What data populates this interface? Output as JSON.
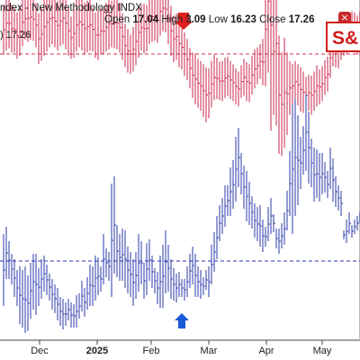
{
  "header": {
    "title": "ndex - New Methodology  INDX",
    "open_label": "Open",
    "open_value": "17.04",
    "high_label": "High",
    "high_value": "3.09",
    "low_label": "Low",
    "low_value": "16.23",
    "close_label": "Close",
    "close_value": "17.26",
    "series_label": ") 17.26",
    "close_icon": "close-icon"
  },
  "logo": {
    "text": "S&"
  },
  "markers": {
    "top": {
      "icon": "arrow-down-icon",
      "color": "#e02020"
    },
    "bottom": {
      "icon": "arrow-up-icon",
      "color": "#1a5ad8"
    }
  },
  "chart_data": {
    "type": "bar",
    "style": "ohlc",
    "x_ticks": [
      {
        "label": "Dec",
        "bold": false
      },
      {
        "label": "2025",
        "bold": true
      },
      {
        "label": "Feb",
        "bold": false
      },
      {
        "label": "Mar",
        "bold": false
      },
      {
        "label": "Apr",
        "bold": false
      },
      {
        "label": "May",
        "bold": false
      }
    ],
    "reference_lines": [
      {
        "series": "upper",
        "style": "dashed",
        "color": "#d0304a",
        "value": 17.26
      },
      {
        "series": "lower",
        "style": "dashed",
        "color": "#2a3aa8",
        "value": 0.15
      }
    ],
    "series": [
      {
        "color": "#c8264a",
        "bars": [
          [
            21.9,
            17.2
          ],
          [
            22.8,
            17.6
          ],
          [
            22.5,
            17.8
          ],
          [
            21.9,
            17.4
          ],
          [
            21.7,
            17.4
          ],
          [
            21.2,
            16.8
          ],
          [
            21.8,
            17.1
          ],
          [
            22.5,
            18.0
          ],
          [
            22.6,
            18.6
          ],
          [
            22.9,
            18.4
          ],
          [
            22.9,
            18.6
          ],
          [
            22.6,
            18.5
          ],
          [
            22.1,
            17.9
          ],
          [
            21.1,
            16.3
          ],
          [
            21.7,
            16.6
          ],
          [
            22.6,
            17.1
          ],
          [
            23.0,
            17.5
          ],
          [
            23.3,
            17.9
          ],
          [
            23.2,
            18.2
          ],
          [
            22.8,
            17.9
          ],
          [
            22.3,
            17.6
          ],
          [
            22.8,
            18.0
          ],
          [
            23.1,
            18.2
          ],
          [
            22.7,
            17.7
          ],
          [
            21.8,
            17.1
          ],
          [
            20.8,
            16.8
          ],
          [
            21.5,
            16.9
          ],
          [
            22.5,
            17.5
          ],
          [
            22.7,
            17.9
          ],
          [
            22.5,
            17.6
          ],
          [
            22.1,
            17.2
          ],
          [
            22.3,
            17.4
          ],
          [
            22.4,
            17.6
          ],
          [
            21.7,
            17.5
          ],
          [
            21.2,
            16.9
          ],
          [
            21.4,
            16.7
          ],
          [
            21.7,
            17.2
          ],
          [
            21.5,
            17.3
          ],
          [
            22.1,
            17.5
          ],
          [
            22.5,
            17.7
          ],
          [
            22.3,
            17.9
          ],
          [
            22.6,
            17.8
          ],
          [
            22.7,
            17.7
          ],
          [
            22.1,
            17.4
          ],
          [
            21.1,
            16.7
          ],
          [
            20.1,
            16.0
          ],
          [
            19.6,
            15.5
          ],
          [
            19.1,
            15.4
          ],
          [
            19.8,
            15.6
          ],
          [
            20.7,
            16.2
          ],
          [
            21.7,
            16.9
          ],
          [
            21.9,
            17.6
          ],
          [
            22.0,
            17.3
          ],
          [
            21.9,
            17.5
          ],
          [
            22.8,
            18.2
          ],
          [
            23.2,
            18.4
          ],
          [
            22.9,
            18.5
          ],
          [
            22.6,
            18.3
          ],
          [
            23.6,
            19.0
          ],
          [
            23.8,
            19.4
          ],
          [
            23.7,
            19.3
          ],
          [
            23.0,
            18.2
          ],
          [
            21.8,
            17.1
          ],
          [
            20.9,
            16.5
          ],
          [
            21.1,
            16.7
          ],
          [
            20.5,
            16.0
          ],
          [
            20.0,
            15.8
          ],
          [
            19.3,
            15.2
          ],
          [
            18.7,
            14.8
          ],
          [
            17.8,
            14.0
          ],
          [
            17.4,
            13.1
          ],
          [
            17.3,
            12.5
          ],
          [
            16.8,
            12.2
          ],
          [
            16.6,
            11.9
          ],
          [
            16.3,
            11.3
          ],
          [
            16.0,
            10.8
          ],
          [
            15.9,
            11.2
          ],
          [
            16.6,
            12.2
          ],
          [
            17.2,
            12.9
          ],
          [
            16.9,
            13.0
          ],
          [
            16.5,
            12.9
          ],
          [
            16.6,
            12.8
          ],
          [
            16.9,
            13.1
          ],
          [
            17.0,
            13.3
          ],
          [
            16.6,
            13.0
          ],
          [
            16.3,
            12.8
          ],
          [
            15.9,
            12.5
          ],
          [
            15.6,
            12.3
          ],
          [
            16.2,
            13.1
          ],
          [
            16.8,
            13.3
          ],
          [
            16.5,
            12.8
          ],
          [
            16.3,
            12.7
          ],
          [
            17.1,
            13.4
          ],
          [
            17.7,
            14.0
          ],
          [
            17.9,
            14.4
          ],
          [
            18.2,
            14.9
          ],
          [
            18.7,
            14.3
          ],
          [
            25.0,
            14.2
          ],
          [
            29.0,
            15.5
          ],
          [
            30.0,
            10.0
          ],
          [
            23.5,
            11.5
          ],
          [
            26.0,
            10.5
          ],
          [
            19.0,
            7.8
          ],
          [
            17.4,
            7.6
          ],
          [
            18.8,
            8.4
          ],
          [
            17.4,
            9.6
          ],
          [
            16.6,
            11.5
          ],
          [
            16.3,
            12.2
          ],
          [
            16.6,
            12.7
          ],
          [
            16.3,
            12.4
          ],
          [
            16.0,
            11.8
          ],
          [
            15.6,
            11.7
          ],
          [
            15.1,
            11.6
          ],
          [
            15.3,
            11.9
          ],
          [
            15.2,
            11.5
          ],
          [
            15.6,
            11.9
          ],
          [
            16.2,
            12.3
          ],
          [
            15.8,
            12.5
          ],
          [
            16.1,
            12.8
          ],
          [
            16.7,
            13.4
          ],
          [
            17.0,
            13.7
          ],
          [
            18.8,
            15.0
          ],
          [
            19.0,
            16.1
          ],
          [
            18.9,
            16.0
          ],
          [
            19.2,
            15.9
          ],
          [
            19.9,
            16.7
          ],
          [
            20.4,
            17.1
          ],
          [
            20.8,
            17.3
          ],
          [
            20.9,
            17.6
          ],
          [
            21.3,
            18.0
          ],
          [
            21.2,
            17.4
          ],
          [
            20.9,
            17.2
          ],
          [
            21.3,
            17.6
          ]
        ]
      },
      {
        "color": "#2a3aa8",
        "bars": [
          [
            0.3,
            -0.1
          ],
          [
            0.34,
            0.05
          ],
          [
            0.26,
            0.05
          ],
          [
            0.19,
            0.02
          ],
          [
            0.16,
            -0.05
          ],
          [
            0.1,
            -0.1
          ],
          [
            0.12,
            -0.2
          ],
          [
            0.1,
            -0.22
          ],
          [
            0.12,
            -0.25
          ],
          [
            0.07,
            -0.24
          ],
          [
            0.14,
            -0.17
          ],
          [
            0.19,
            -0.12
          ],
          [
            0.19,
            -0.15
          ],
          [
            0.11,
            -0.1
          ],
          [
            0.16,
            -0.06
          ],
          [
            0.18,
            -0.02
          ],
          [
            0.13,
            -0.04
          ],
          [
            0.08,
            -0.07
          ],
          [
            0.05,
            -0.12
          ],
          [
            0.02,
            -0.14
          ],
          [
            0.0,
            -0.18
          ],
          [
            -0.05,
            -0.21
          ],
          [
            -0.06,
            -0.23
          ],
          [
            -0.08,
            -0.21
          ],
          [
            -0.06,
            -0.18
          ],
          [
            -0.08,
            -0.22
          ],
          [
            -0.09,
            -0.22
          ],
          [
            -0.04,
            -0.22
          ],
          [
            -0.03,
            -0.17
          ],
          [
            0.04,
            -0.13
          ],
          [
            0.0,
            -0.16
          ],
          [
            0.06,
            -0.12
          ],
          [
            0.13,
            -0.1
          ],
          [
            0.12,
            -0.1
          ],
          [
            0.18,
            -0.07
          ],
          [
            0.17,
            -0.04
          ],
          [
            0.12,
            -0.02
          ],
          [
            0.3,
            0.02
          ],
          [
            0.22,
            0.06
          ],
          [
            0.2,
            0.04
          ],
          [
            0.58,
            -0.05
          ],
          [
            0.62,
            0.08
          ],
          [
            0.35,
            0.06
          ],
          [
            0.3,
            0.04
          ],
          [
            0.33,
            0.04
          ],
          [
            0.32,
            0.0
          ],
          [
            0.23,
            -0.03
          ],
          [
            0.2,
            -0.05
          ],
          [
            0.16,
            -0.1
          ],
          [
            0.2,
            -0.06
          ],
          [
            0.3,
            -0.02
          ],
          [
            0.26,
            0.02
          ],
          [
            0.14,
            -0.06
          ],
          [
            0.25,
            -0.04
          ],
          [
            0.27,
            0.04
          ],
          [
            0.18,
            0.0
          ],
          [
            0.11,
            -0.03
          ],
          [
            0.09,
            -0.09
          ],
          [
            0.18,
            -0.11
          ],
          [
            0.24,
            -0.11
          ],
          [
            0.32,
            -0.03
          ],
          [
            0.24,
            -0.02
          ],
          [
            0.16,
            -0.06
          ],
          [
            0.11,
            -0.07
          ],
          [
            0.08,
            -0.08
          ],
          [
            0.09,
            -0.05
          ],
          [
            0.05,
            -0.05
          ],
          [
            0.05,
            -0.07
          ],
          [
            0.12,
            -0.05
          ],
          [
            0.19,
            0.0
          ],
          [
            0.23,
            0.02
          ],
          [
            0.19,
            -0.05
          ],
          [
            0.12,
            -0.05
          ],
          [
            0.1,
            -0.06
          ],
          [
            0.06,
            -0.04
          ],
          [
            0.1,
            -0.01
          ],
          [
            0.12,
            -0.05
          ],
          [
            0.24,
            0.02
          ],
          [
            0.31,
            0.09
          ],
          [
            0.4,
            0.16
          ],
          [
            0.46,
            0.26
          ],
          [
            0.5,
            0.3
          ],
          [
            0.57,
            0.34
          ],
          [
            0.57,
            0.4
          ],
          [
            0.67,
            0.4
          ],
          [
            0.71,
            0.44
          ],
          [
            0.84,
            0.48
          ],
          [
            0.89,
            0.56
          ],
          [
            0.75,
            0.52
          ],
          [
            0.68,
            0.44
          ],
          [
            0.65,
            0.37
          ],
          [
            0.59,
            0.35
          ],
          [
            0.51,
            0.33
          ],
          [
            0.47,
            0.28
          ],
          [
            0.45,
            0.26
          ],
          [
            0.46,
            0.23
          ],
          [
            0.38,
            0.2
          ],
          [
            0.34,
            0.23
          ],
          [
            0.45,
            0.26
          ],
          [
            0.5,
            0.3
          ],
          [
            0.41,
            0.31
          ],
          [
            0.33,
            0.22
          ],
          [
            0.33,
            0.19
          ],
          [
            0.36,
            0.22
          ],
          [
            0.42,
            0.24
          ],
          [
            0.54,
            0.32
          ],
          [
            0.76,
            0.4
          ],
          [
            1.02,
            0.3
          ],
          [
            1.05,
            0.4
          ],
          [
            0.96,
            0.46
          ],
          [
            0.84,
            0.55
          ],
          [
            0.9,
            0.63
          ],
          [
            1.08,
            0.65
          ],
          [
            0.98,
            0.58
          ],
          [
            0.83,
            0.56
          ],
          [
            0.78,
            0.48
          ],
          [
            0.77,
            0.5
          ],
          [
            0.75,
            0.48
          ],
          [
            0.75,
            0.52
          ],
          [
            0.7,
            0.53
          ],
          [
            0.65,
            0.5
          ],
          [
            0.78,
            0.55
          ],
          [
            0.72,
            0.48
          ],
          [
            0.62,
            0.45
          ],
          [
            0.57,
            0.43
          ],
          [
            0.54,
            0.4
          ],
          [
            0.32,
            0.27
          ],
          [
            0.38,
            0.25
          ],
          [
            0.42,
            0.3
          ],
          [
            0.35,
            0.28
          ],
          [
            0.38,
            0.3
          ],
          [
            0.4,
            0.32
          ],
          [
            0.42,
            0.36
          ]
        ]
      }
    ]
  }
}
